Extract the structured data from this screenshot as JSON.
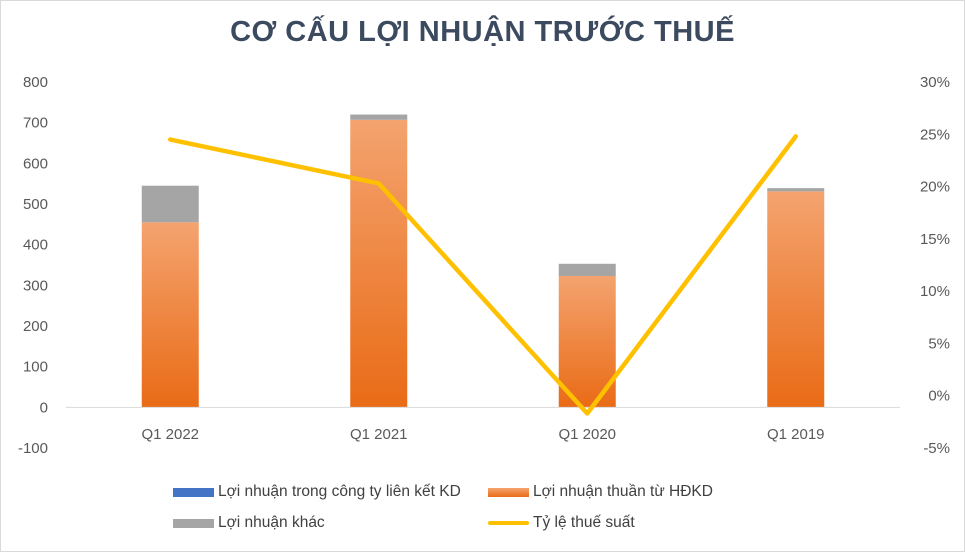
{
  "title": "CƠ CẤU LỢI NHUẬN TRƯỚC THUẾ",
  "colors": {
    "lien_ket": "#4472c4",
    "hdkd_top": "#f4a36f",
    "hdkd_bottom": "#e96b16",
    "khac": "#a5a5a5",
    "ty_le": "#ffc000",
    "axis": "#d9d9d9",
    "text": "#595959"
  },
  "chart_data": {
    "type": "bar",
    "stacked": true,
    "categories": [
      "Q1 2022",
      "Q1 2021",
      "Q1 2020",
      "Q1 2019"
    ],
    "series": [
      {
        "name": "Lợi nhuận trong công ty liên kết KD",
        "type": "bar",
        "axis": "left",
        "values": [
          0,
          0,
          0,
          0
        ]
      },
      {
        "name": "Lợi nhuận thuần từ HĐKD",
        "type": "bar",
        "axis": "left",
        "values": [
          455,
          707,
          323,
          531
        ]
      },
      {
        "name": "Lợi nhuận khác",
        "type": "bar",
        "axis": "left",
        "values": [
          90,
          13,
          30,
          8
        ]
      },
      {
        "name": "Tỷ lệ thuế suất",
        "type": "line",
        "axis": "right",
        "values": [
          0.245,
          0.203,
          -0.017,
          0.248
        ]
      }
    ],
    "y_left": {
      "min": -100,
      "max": 800,
      "step": 100,
      "ticks": [
        "-100",
        "0",
        "100",
        "200",
        "300",
        "400",
        "500",
        "600",
        "700",
        "800"
      ]
    },
    "y_right": {
      "min": -0.05,
      "max": 0.3,
      "step": 0.05,
      "ticks": [
        "-5%",
        "0%",
        "5%",
        "10%",
        "15%",
        "20%",
        "25%",
        "30%"
      ]
    },
    "grid": false,
    "legend_position": "bottom"
  }
}
